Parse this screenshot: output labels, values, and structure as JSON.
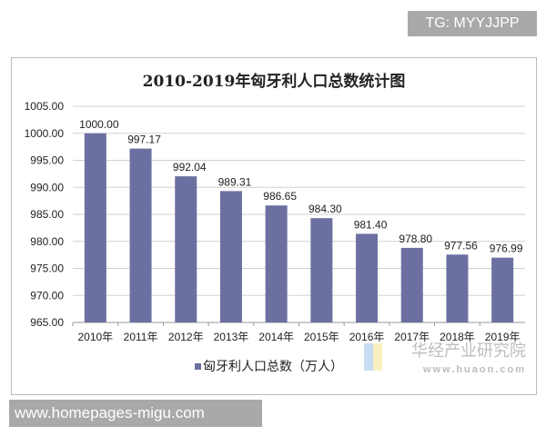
{
  "badge": "TG: MYYJJPP",
  "watermark_bottom": "www.homepages-migu.com",
  "source_logo": {
    "name": "华经产业研究院",
    "url": "www.huaon.com"
  },
  "chart_data": {
    "type": "bar",
    "title": "2010-2019年匈牙利人口总数统计图",
    "categories": [
      "2010年",
      "2011年",
      "2012年",
      "2013年",
      "2014年",
      "2015年",
      "2016年",
      "2017年",
      "2018年",
      "2019年"
    ],
    "series": [
      {
        "name": "匈牙利人口总数（万人）",
        "values": [
          1000.0,
          997.17,
          992.04,
          989.31,
          986.65,
          984.3,
          981.4,
          978.8,
          977.56,
          976.99
        ],
        "color": "#6b70a0"
      }
    ],
    "data_labels": [
      "1000.00",
      "997.17",
      "992.04",
      "989.31",
      "986.65",
      "984.30",
      "981.40",
      "978.80",
      "977.56",
      "976.99"
    ],
    "ylim": [
      965,
      1005
    ],
    "yticks": [
      "965.00",
      "970.00",
      "975.00",
      "980.00",
      "985.00",
      "990.00",
      "995.00",
      "1000.00",
      "1005.00"
    ],
    "grid": true,
    "legend": "bottom"
  }
}
